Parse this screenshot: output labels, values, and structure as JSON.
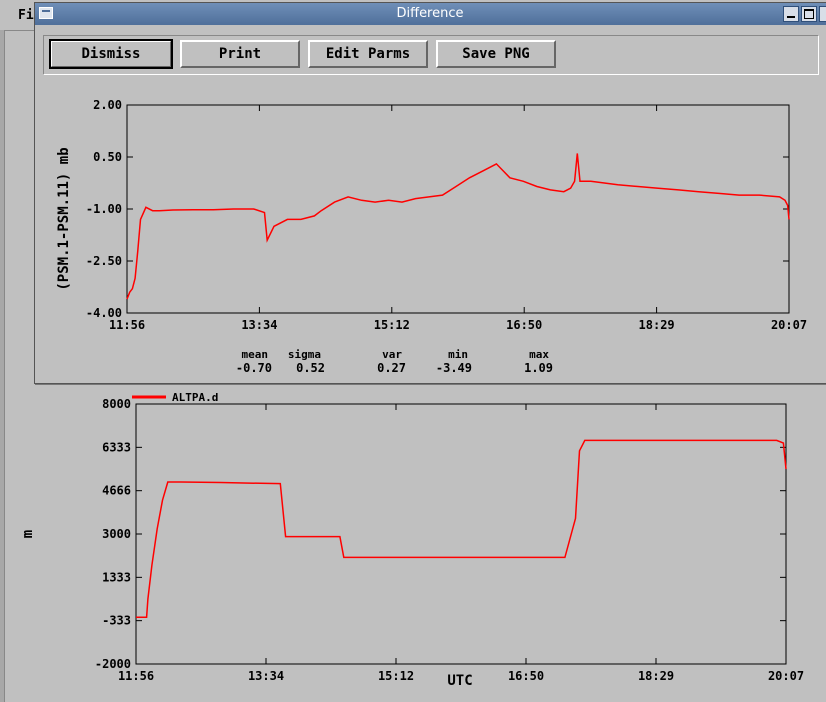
{
  "background": {
    "menu_fragment": "Fi"
  },
  "dialog": {
    "title": "Difference",
    "buttons": {
      "dismiss": "Dismiss",
      "print": "Print",
      "edit_parms": "Edit Parms",
      "save_png": "Save PNG"
    }
  },
  "colors": {
    "series": "#ff0000",
    "plot_bg": "#c0c0c0",
    "titlebar": "#5b7ba8"
  },
  "stats": {
    "labels": [
      "mean",
      "sigma",
      "var",
      "min",
      "max"
    ],
    "values": [
      "-0.70",
      "0.52",
      "0.27",
      "-3.49",
      "1.09"
    ]
  },
  "chart_data": [
    {
      "type": "line",
      "title": "",
      "ylabel": "(PSM.1-PSM.11) mb",
      "unit_label": "mb",
      "xlabel": "",
      "ylim": [
        -4.0,
        2.0
      ],
      "yticks": [
        2.0,
        0.5,
        -1.0,
        -2.5,
        -4.0
      ],
      "ytick_labels": [
        "2.00",
        "0.50",
        "-1.00",
        "-2.50",
        "-4.00"
      ],
      "xlim": [
        "11:56",
        "20:07"
      ],
      "xtick_labels": [
        "11:56",
        "13:34",
        "15:12",
        "16:50",
        "18:29",
        "20:07"
      ],
      "grid": false,
      "series": [
        {
          "color": "#ff0000",
          "x": [
            "11:56",
            "11:58",
            "12:00",
            "12:02",
            "12:04",
            "12:06",
            "12:10",
            "12:15",
            "12:20",
            "12:30",
            "12:45",
            "13:00",
            "13:15",
            "13:30",
            "13:38",
            "13:40",
            "13:45",
            "13:55",
            "14:05",
            "14:15",
            "14:20",
            "14:30",
            "14:40",
            "14:50",
            "15:00",
            "15:10",
            "15:20",
            "15:30",
            "15:40",
            "15:50",
            "16:00",
            "16:10",
            "16:20",
            "16:30",
            "16:35",
            "16:40",
            "16:50",
            "17:00",
            "17:10",
            "17:20",
            "17:25",
            "17:28",
            "17:30",
            "17:32",
            "17:35",
            "17:40",
            "17:50",
            "18:00",
            "18:15",
            "18:30",
            "18:45",
            "19:00",
            "19:15",
            "19:30",
            "19:45",
            "20:00",
            "20:04",
            "20:06",
            "20:07"
          ],
          "y": [
            -3.6,
            -3.4,
            -3.3,
            -3.0,
            -2.2,
            -1.3,
            -0.95,
            -1.05,
            -1.05,
            -1.03,
            -1.02,
            -1.02,
            -1.0,
            -1.0,
            -1.1,
            -1.9,
            -1.5,
            -1.3,
            -1.3,
            -1.2,
            -1.05,
            -0.8,
            -0.65,
            -0.75,
            -0.8,
            -0.75,
            -0.8,
            -0.7,
            -0.65,
            -0.6,
            -0.35,
            -0.1,
            0.1,
            0.3,
            0.1,
            -0.1,
            -0.2,
            -0.35,
            -0.45,
            -0.5,
            -0.4,
            -0.2,
            0.6,
            -0.2,
            -0.2,
            -0.2,
            -0.25,
            -0.3,
            -0.35,
            -0.4,
            -0.45,
            -0.5,
            -0.55,
            -0.6,
            -0.6,
            -0.65,
            -0.75,
            -0.9,
            -1.3
          ]
        }
      ]
    },
    {
      "type": "line",
      "title": "",
      "ylabel": "m",
      "xlabel": "UTC",
      "ylim": [
        -2000,
        8000
      ],
      "yticks": [
        8000,
        6333,
        4666,
        3000,
        1333,
        -333,
        -2000
      ],
      "ytick_labels": [
        "8000",
        "6333",
        "4666",
        "3000",
        "1333",
        "-333",
        "-2000"
      ],
      "xlim": [
        "11:56",
        "20:07"
      ],
      "xtick_labels": [
        "11:56",
        "13:34",
        "15:12",
        "16:50",
        "18:29",
        "20:07"
      ],
      "grid": false,
      "legend": {
        "position": "top-left"
      },
      "series": [
        {
          "name": "ALTPA.d",
          "color": "#ff0000",
          "x": [
            "11:56",
            "12:04",
            "12:05",
            "12:08",
            "12:12",
            "12:16",
            "12:20",
            "12:25",
            "12:30",
            "13:00",
            "13:30",
            "13:45",
            "13:49",
            "14:00",
            "14:30",
            "14:33",
            "15:00",
            "15:30",
            "16:00",
            "16:30",
            "17:00",
            "17:20",
            "17:28",
            "17:31",
            "17:35",
            "18:00",
            "18:30",
            "19:00",
            "19:30",
            "20:00",
            "20:05",
            "20:07"
          ],
          "y": [
            -200,
            -200,
            500,
            1800,
            3200,
            4300,
            5000,
            5000,
            5000,
            4980,
            4950,
            4940,
            2900,
            2900,
            2900,
            2100,
            2100,
            2100,
            2100,
            2100,
            2100,
            2100,
            3600,
            6200,
            6600,
            6600,
            6600,
            6600,
            6600,
            6600,
            6500,
            5500
          ]
        }
      ]
    }
  ]
}
